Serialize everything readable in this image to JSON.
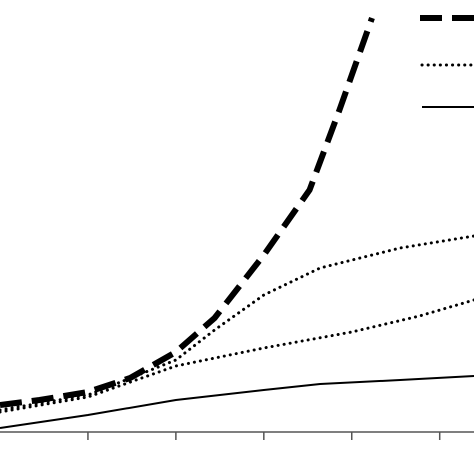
{
  "chart_data": {
    "type": "line",
    "xlim": [
      0,
      5.39
    ],
    "ylim": [
      0,
      432
    ],
    "xticks": [
      1,
      2,
      3,
      4,
      5
    ],
    "series": [
      {
        "color": "#000000",
        "style": "dashed",
        "x": [
          0,
          0.45,
          1,
          1.48,
          2,
          2.44,
          3,
          3.52,
          3.86,
          4.23
        ],
        "values": [
          27,
          32,
          40,
          54,
          80,
          114,
          177,
          242,
          322,
          414
        ]
      },
      {
        "color": "#000000",
        "style": "dotted",
        "x": [
          0,
          1,
          2,
          2.44,
          3,
          3.64,
          4.55,
          5.39
        ],
        "values": [
          22,
          37,
          72,
          102,
          137,
          164,
          184,
          196
        ]
      },
      {
        "color": "#000000",
        "style": "dotted",
        "x": [
          0,
          1,
          2,
          3,
          4,
          4.77,
          5.39
        ],
        "values": [
          20,
          35,
          66,
          84,
          100,
          116,
          132
        ]
      },
      {
        "color": "#000000",
        "style": "solid",
        "x": [
          0,
          1,
          2,
          3,
          3.64,
          4.55,
          5.39
        ],
        "values": [
          4,
          17,
          32,
          42,
          48,
          52,
          56
        ]
      }
    ]
  }
}
